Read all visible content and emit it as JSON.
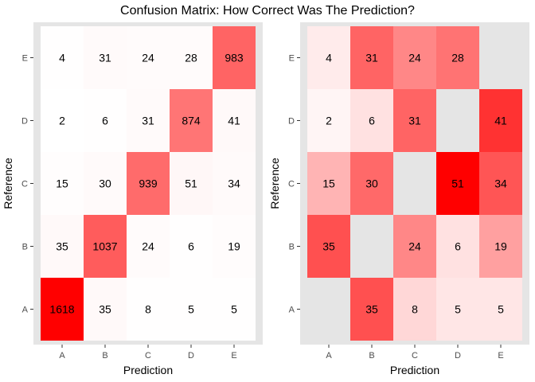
{
  "title": "Confusion Matrix: How Correct Was The Prediction?",
  "colors": {
    "panel_background": "#e5e5e5",
    "tick": "#333333",
    "low": "#ffffff",
    "high": "#ff0000"
  },
  "chart_data": [
    {
      "type": "heatmap",
      "xlabel": "Prediction",
      "ylabel": "Reference",
      "x_categories": [
        "A",
        "B",
        "C",
        "D",
        "E"
      ],
      "y_categories": [
        "A",
        "B",
        "C",
        "D",
        "E"
      ],
      "fill_max": 1618,
      "cells": [
        {
          "x": "A",
          "y": "A",
          "value": 1618
        },
        {
          "x": "B",
          "y": "A",
          "value": 35
        },
        {
          "x": "C",
          "y": "A",
          "value": 8
        },
        {
          "x": "D",
          "y": "A",
          "value": 5
        },
        {
          "x": "E",
          "y": "A",
          "value": 5
        },
        {
          "x": "A",
          "y": "B",
          "value": 35
        },
        {
          "x": "B",
          "y": "B",
          "value": 1037
        },
        {
          "x": "C",
          "y": "B",
          "value": 24
        },
        {
          "x": "D",
          "y": "B",
          "value": 6
        },
        {
          "x": "E",
          "y": "B",
          "value": 19
        },
        {
          "x": "A",
          "y": "C",
          "value": 15
        },
        {
          "x": "B",
          "y": "C",
          "value": 30
        },
        {
          "x": "C",
          "y": "C",
          "value": 939
        },
        {
          "x": "D",
          "y": "C",
          "value": 51
        },
        {
          "x": "E",
          "y": "C",
          "value": 34
        },
        {
          "x": "A",
          "y": "D",
          "value": 2
        },
        {
          "x": "B",
          "y": "D",
          "value": 6
        },
        {
          "x": "C",
          "y": "D",
          "value": 31
        },
        {
          "x": "D",
          "y": "D",
          "value": 874
        },
        {
          "x": "E",
          "y": "D",
          "value": 41
        },
        {
          "x": "A",
          "y": "E",
          "value": 4
        },
        {
          "x": "B",
          "y": "E",
          "value": 31
        },
        {
          "x": "C",
          "y": "E",
          "value": 24
        },
        {
          "x": "D",
          "y": "E",
          "value": 28
        },
        {
          "x": "E",
          "y": "E",
          "value": 983
        }
      ]
    },
    {
      "type": "heatmap",
      "xlabel": "Prediction",
      "ylabel": "Reference",
      "x_categories": [
        "A",
        "B",
        "C",
        "D",
        "E"
      ],
      "y_categories": [
        "A",
        "B",
        "C",
        "D",
        "E"
      ],
      "fill_max": 51,
      "cells": [
        {
          "x": "B",
          "y": "A",
          "value": 35
        },
        {
          "x": "C",
          "y": "A",
          "value": 8
        },
        {
          "x": "D",
          "y": "A",
          "value": 5
        },
        {
          "x": "E",
          "y": "A",
          "value": 5
        },
        {
          "x": "A",
          "y": "B",
          "value": 35
        },
        {
          "x": "C",
          "y": "B",
          "value": 24
        },
        {
          "x": "D",
          "y": "B",
          "value": 6
        },
        {
          "x": "E",
          "y": "B",
          "value": 19
        },
        {
          "x": "A",
          "y": "C",
          "value": 15
        },
        {
          "x": "B",
          "y": "C",
          "value": 30
        },
        {
          "x": "D",
          "y": "C",
          "value": 51
        },
        {
          "x": "E",
          "y": "C",
          "value": 34
        },
        {
          "x": "A",
          "y": "D",
          "value": 2
        },
        {
          "x": "B",
          "y": "D",
          "value": 6
        },
        {
          "x": "C",
          "y": "D",
          "value": 31
        },
        {
          "x": "E",
          "y": "D",
          "value": 41
        },
        {
          "x": "A",
          "y": "E",
          "value": 4
        },
        {
          "x": "B",
          "y": "E",
          "value": 31
        },
        {
          "x": "C",
          "y": "E",
          "value": 24
        },
        {
          "x": "D",
          "y": "E",
          "value": 28
        }
      ]
    }
  ]
}
